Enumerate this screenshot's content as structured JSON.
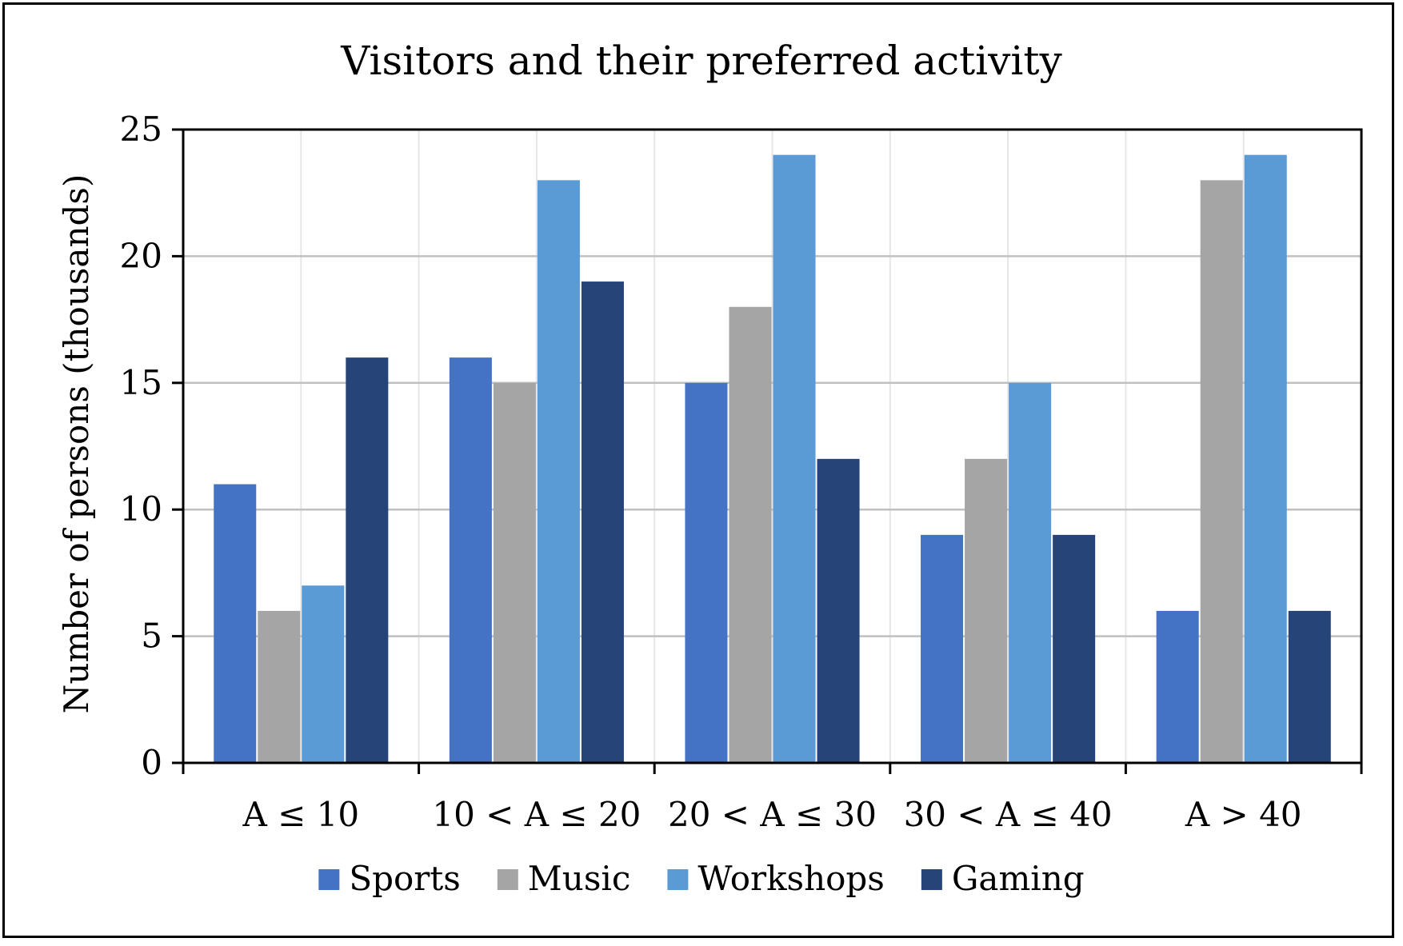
{
  "chart_data": {
    "type": "bar",
    "title": "Visitors and their preferred activity",
    "xlabel": "",
    "ylabel": "Number of persons (thousands)",
    "ylim": [
      0,
      25
    ],
    "yticks": [
      0,
      5,
      10,
      15,
      20,
      25
    ],
    "categories": [
      "A ≤ 10",
      "10 < A ≤ 20",
      "20 < A ≤ 30",
      "30 < A ≤ 40",
      "A > 40"
    ],
    "series": [
      {
        "name": "Sports",
        "color": "#4472C4",
        "values": [
          11,
          16,
          15,
          9,
          6
        ]
      },
      {
        "name": "Music",
        "color": "#A5A5A5",
        "values": [
          6,
          15,
          18,
          12,
          23
        ]
      },
      {
        "name": "Workshops",
        "color": "#5B9BD5",
        "values": [
          7,
          23,
          24,
          15,
          24
        ]
      },
      {
        "name": "Gaming",
        "color": "#264478",
        "values": [
          16,
          19,
          12,
          9,
          6
        ]
      }
    ],
    "grid": true,
    "legend_position": "bottom"
  }
}
